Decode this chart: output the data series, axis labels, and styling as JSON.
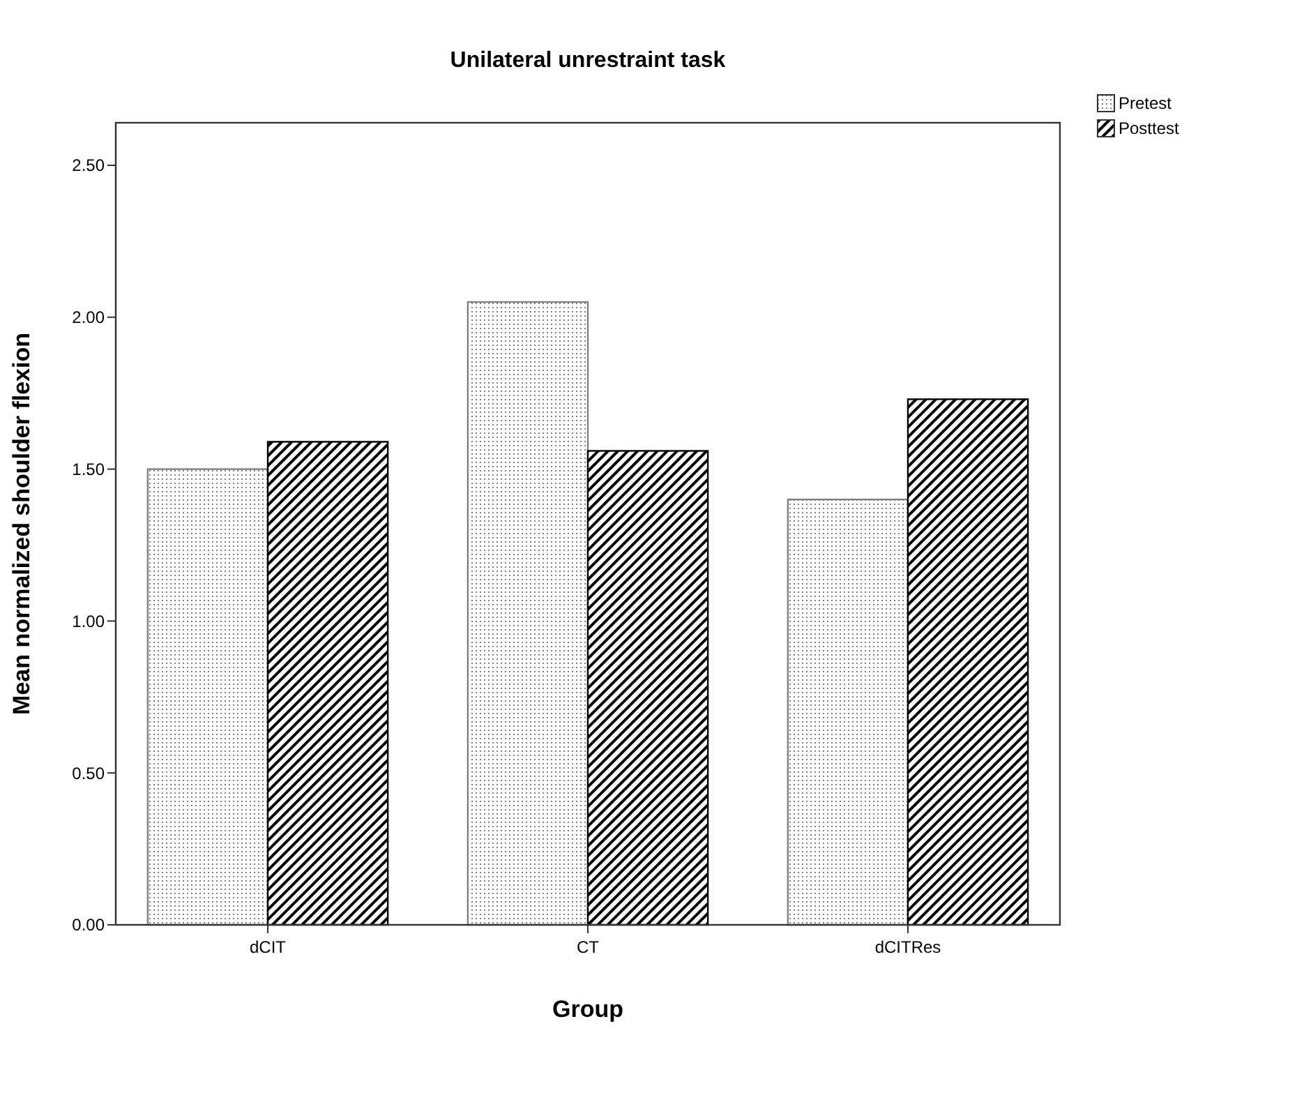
{
  "chart_data": {
    "type": "bar",
    "title": "Unilateral unrestraint task",
    "xlabel": "Group",
    "ylabel": "Mean normalized shoulder flexion",
    "categories": [
      "dCIT",
      "CT",
      "dCITRes"
    ],
    "series": [
      {
        "name": "Pretest",
        "color": "#808080",
        "values": [
          1.5,
          2.05,
          1.4
        ]
      },
      {
        "name": "Posttest",
        "color": "#000000",
        "values": [
          1.59,
          1.56,
          1.73
        ]
      }
    ],
    "ylim": [
      0,
      2.64
    ],
    "yticks": [
      {
        "value": 0,
        "label": "0.00"
      },
      {
        "value": 0.5,
        "label": "0.50"
      },
      {
        "value": 1,
        "label": "1.00"
      },
      {
        "value": 1.5,
        "label": "1.50"
      },
      {
        "value": 2,
        "label": "2.00"
      },
      {
        "value": 2.5,
        "label": "2.50"
      }
    ],
    "grid": false,
    "legend": "top right"
  }
}
